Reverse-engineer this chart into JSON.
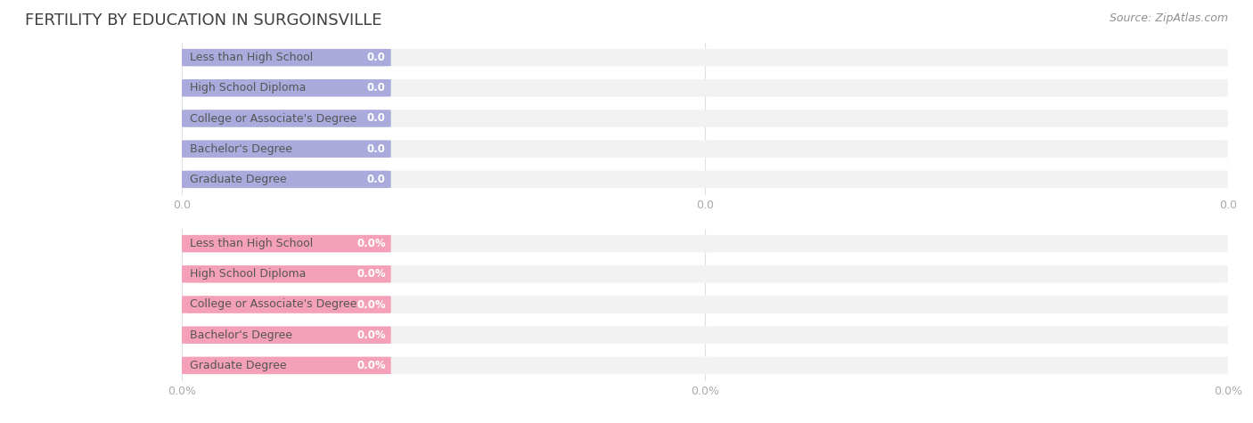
{
  "title": "FERTILITY BY EDUCATION IN SURGOINSVILLE",
  "source": "Source: ZipAtlas.com",
  "categories": [
    "Less than High School",
    "High School Diploma",
    "College or Associate's Degree",
    "Bachelor's Degree",
    "Graduate Degree"
  ],
  "values_top": [
    0.0,
    0.0,
    0.0,
    0.0,
    0.0
  ],
  "values_bottom": [
    0.0,
    0.0,
    0.0,
    0.0,
    0.0
  ],
  "bar_color_top": "#aaaadd",
  "bar_color_bottom": "#f4a0b8",
  "bar_bg_color": "#f2f2f2",
  "text_color_top": "#ffffff",
  "text_color_bottom": "#ffffff",
  "title_color": "#404040",
  "source_color": "#909090",
  "tick_color": "#aaaaaa",
  "background_color": "#ffffff",
  "figsize": [
    14.06,
    4.75
  ],
  "dpi": 100
}
